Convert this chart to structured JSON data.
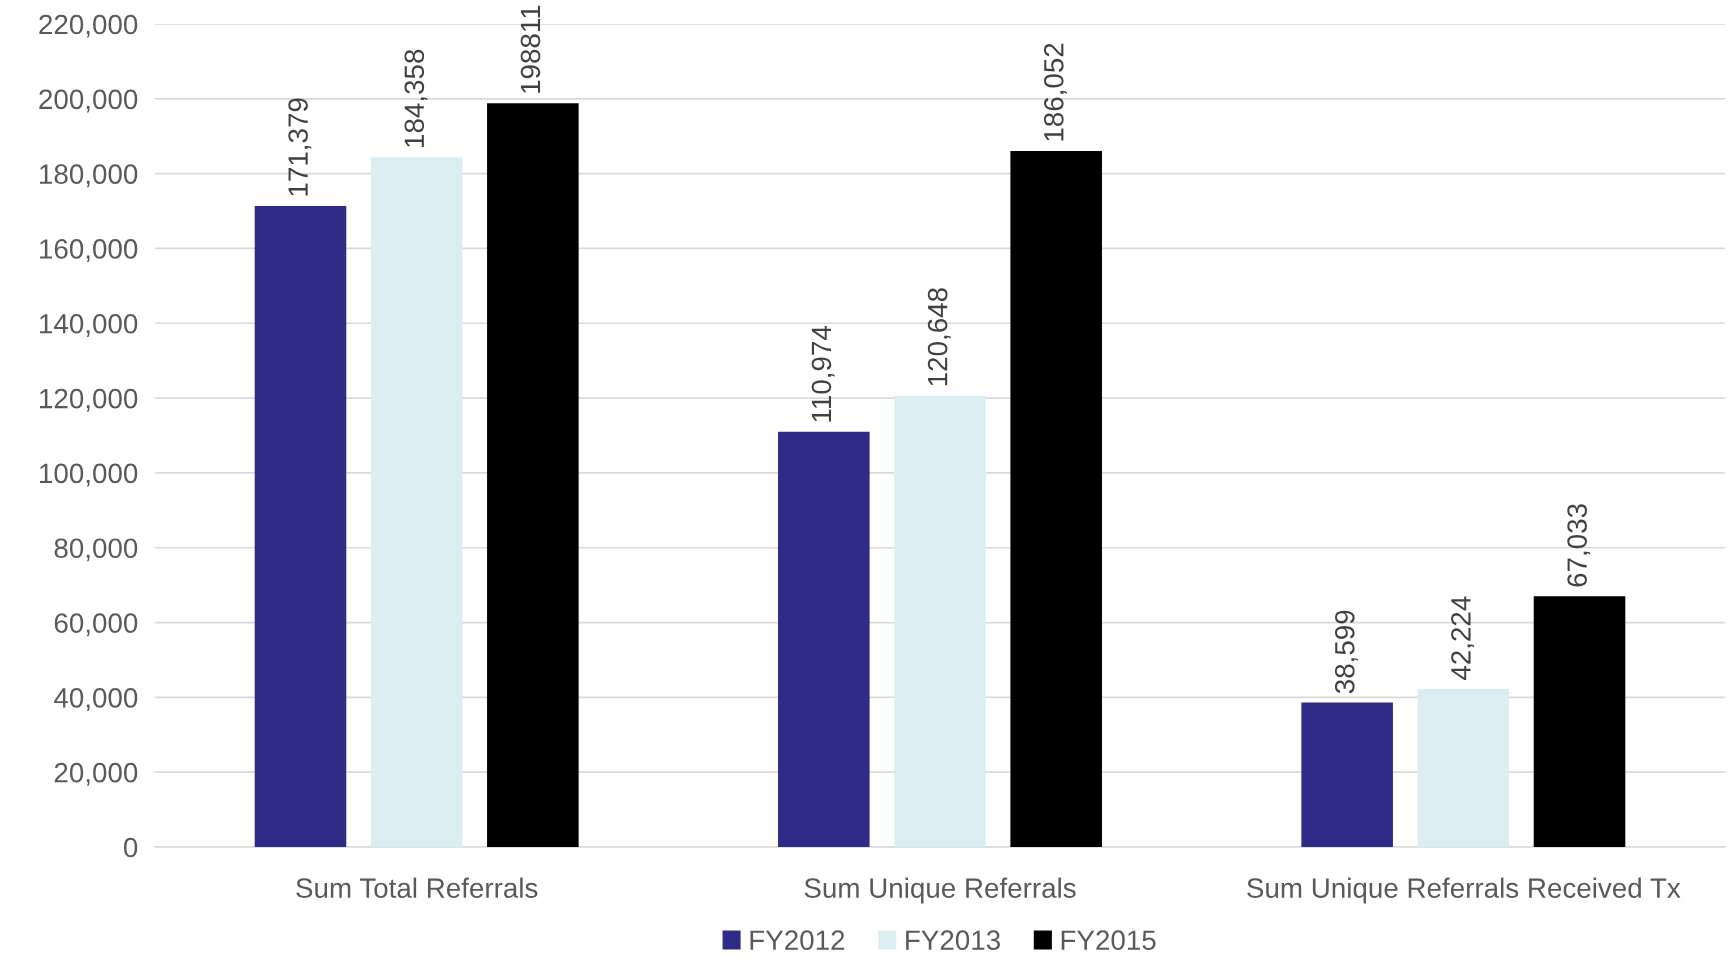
{
  "chart_data": {
    "type": "bar",
    "categories": [
      "Sum Total Referrals",
      "Sum Unique Referrals",
      "Sum Unique Referrals Received Tx"
    ],
    "series": [
      {
        "name": "FY2012",
        "color": "#2e2c87",
        "values": [
          171379,
          110974,
          38599
        ],
        "value_labels": [
          "171,379",
          "110,974",
          "38,599"
        ]
      },
      {
        "name": "FY2013",
        "color": "#daedf0",
        "values": [
          184358,
          120648,
          42224
        ],
        "value_labels": [
          "184,358",
          "120,648",
          "42,224"
        ]
      },
      {
        "name": "FY2015",
        "color": "#000000",
        "values": [
          198811,
          186052,
          67033
        ],
        "value_labels": [
          "198811",
          "186,052",
          "67,033"
        ]
      }
    ],
    "ylim": [
      0,
      220000
    ],
    "yticks": [
      {
        "value": 0,
        "label": "0"
      },
      {
        "value": 20000,
        "label": "20,000"
      },
      {
        "value": 40000,
        "label": "40,000"
      },
      {
        "value": 60000,
        "label": "60,000"
      },
      {
        "value": 80000,
        "label": "80,000"
      },
      {
        "value": 100000,
        "label": "100,000"
      },
      {
        "value": 120000,
        "label": "120,000"
      },
      {
        "value": 140000,
        "label": "140,000"
      },
      {
        "value": 160000,
        "label": "160,000"
      },
      {
        "value": 180000,
        "label": "180,000"
      },
      {
        "value": 200000,
        "label": "200,000"
      },
      {
        "value": 220000,
        "label": "220,000"
      }
    ],
    "grid": "y",
    "legend": "bottom"
  }
}
